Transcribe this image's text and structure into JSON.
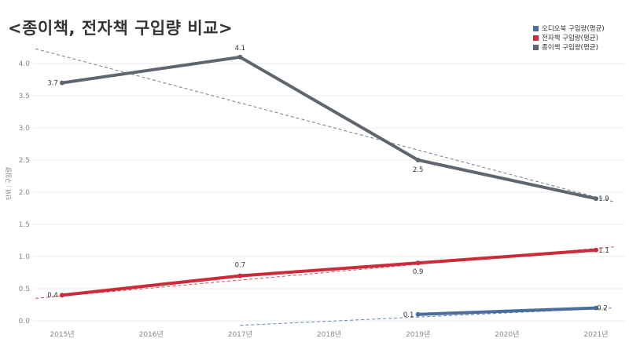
{
  "title": "<종이책, 전자책 구입량 비교>",
  "chart_data": {
    "type": "line",
    "title": "<종이책, 전자책 구입량 비교>",
    "xlabel": "",
    "ylabel": "단위 : 구입량",
    "x_ticks": [
      "2015년",
      "2016년",
      "2017년",
      "2018년",
      "2019년",
      "2020년",
      "2021년"
    ],
    "y_ticks": [
      "0.0",
      "0.5",
      "1.0",
      "1.5",
      "2.0",
      "2.5",
      "3.0",
      "3.5",
      "4.0"
    ],
    "ylim": [
      0,
      4.3
    ],
    "legend_position": "top-right",
    "grid": true,
    "series": [
      {
        "name": "오디오북 구입량(평균)",
        "color": "#4a6f9e",
        "points": [
          {
            "x": 2019,
            "y": 0.1,
            "label": "0.1"
          },
          {
            "x": 2021,
            "y": 0.2,
            "label": "0.2"
          }
        ],
        "trendline": {
          "x": [
            2017,
            2021.2
          ],
          "y": [
            -0.07,
            0.2
          ]
        }
      },
      {
        "name": "전자책 구입량(평균)",
        "color": "#cc2b3b",
        "points": [
          {
            "x": 2015,
            "y": 0.4,
            "label": "0.4"
          },
          {
            "x": 2017,
            "y": 0.7,
            "label": "0.7"
          },
          {
            "x": 2019,
            "y": 0.9,
            "label": "0.9"
          },
          {
            "x": 2021,
            "y": 1.1,
            "label": "1.1"
          }
        ],
        "trendline": {
          "x": [
            2014.7,
            2021.2
          ],
          "y": [
            0.35,
            1.15
          ]
        }
      },
      {
        "name": "종이책 구입량(평균)",
        "color": "#5f6670",
        "points": [
          {
            "x": 2015,
            "y": 3.7,
            "label": "3.7"
          },
          {
            "x": 2017,
            "y": 4.1,
            "label": "4.1"
          },
          {
            "x": 2019,
            "y": 2.5,
            "label": "2.5"
          },
          {
            "x": 2021,
            "y": 1.9,
            "label": "1.9"
          }
        ],
        "trendline": {
          "x": [
            2014.7,
            2021.2
          ],
          "y": [
            4.23,
            1.85
          ]
        }
      }
    ]
  }
}
